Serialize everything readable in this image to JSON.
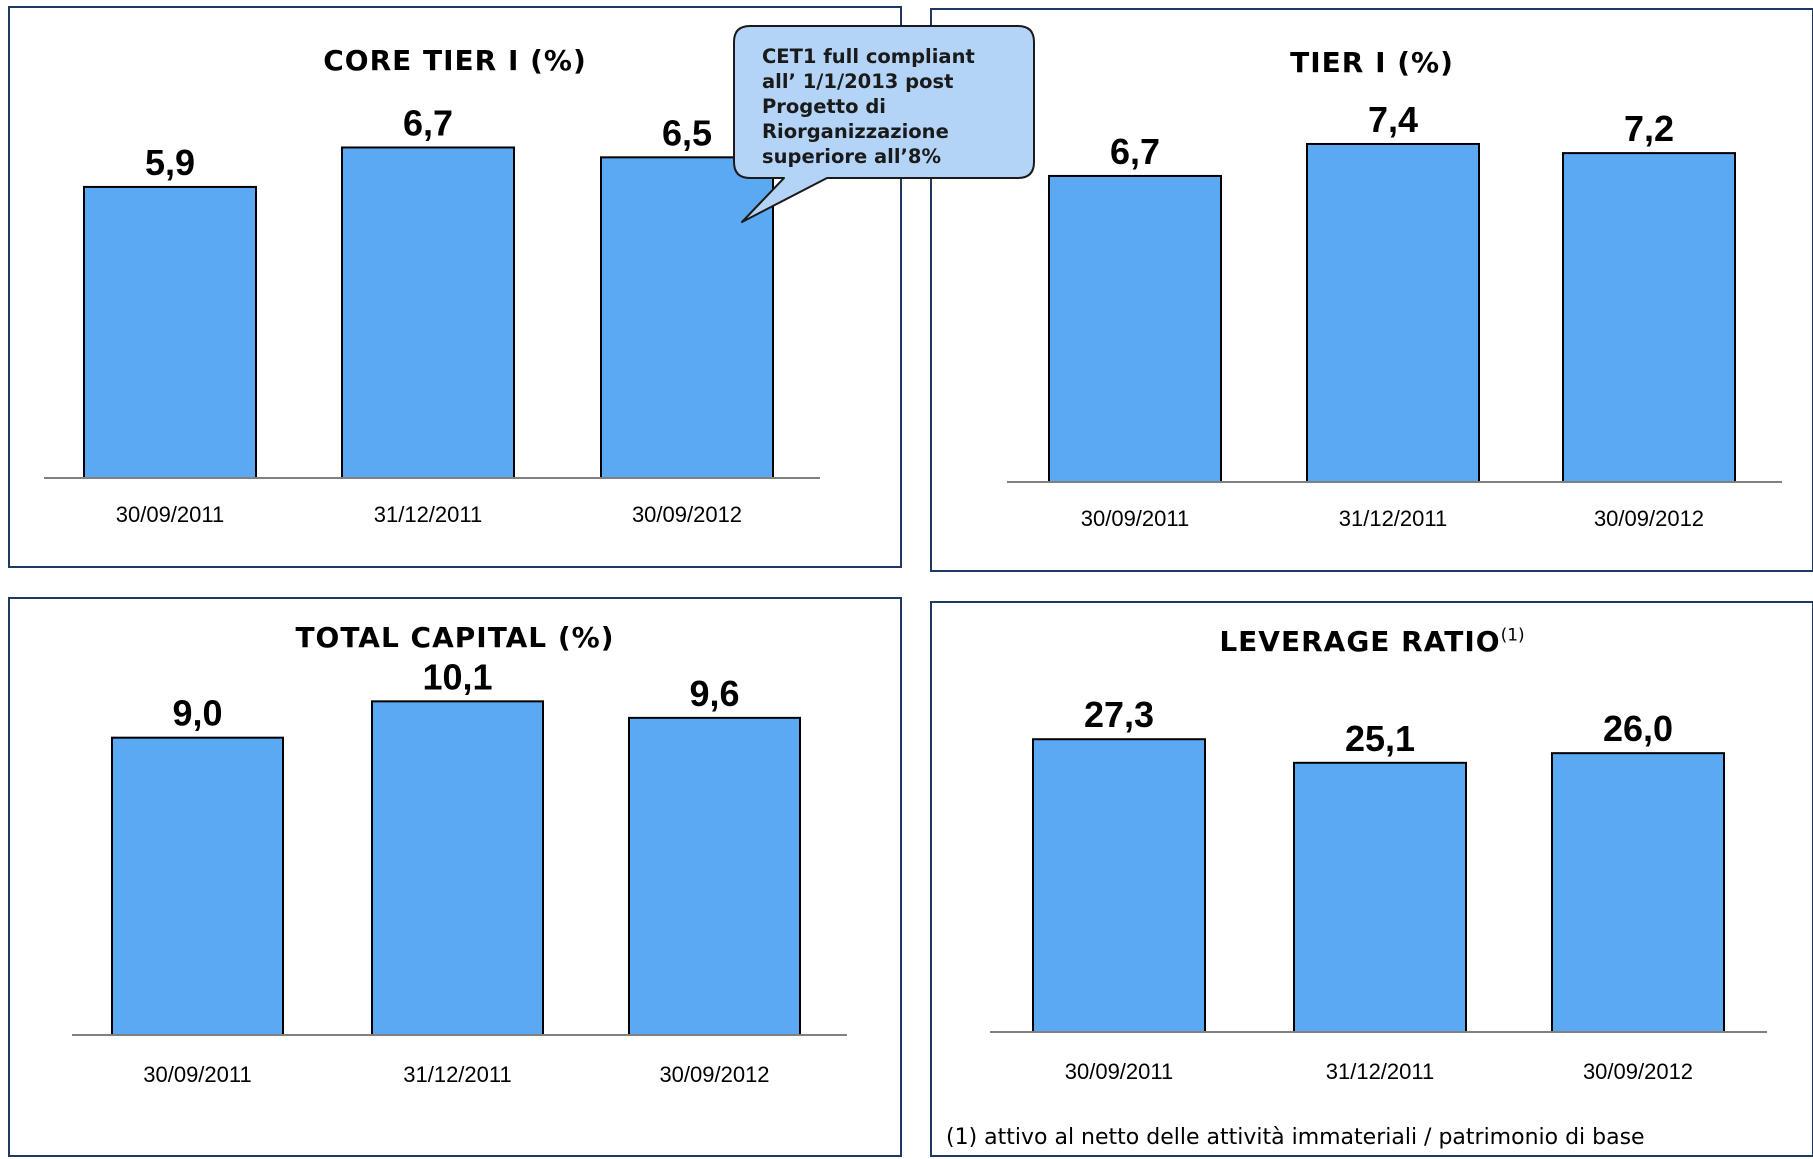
{
  "colors": {
    "bar": "#5aa9f2",
    "bar_border": "#000000",
    "panel_border": "#1f3864",
    "callout_fill": "#b3d4f7"
  },
  "chart_data": [
    {
      "type": "bar",
      "title": "CORE TIER I (%)",
      "categories": [
        "30/09/2011",
        "31/12/2011",
        "30/09/2012"
      ],
      "values": [
        5.9,
        6.7,
        6.5
      ],
      "value_labels": [
        "5,9",
        "6,7",
        "6,5"
      ],
      "ylim": [
        0,
        7.5
      ]
    },
    {
      "type": "bar",
      "title": "TIER I (%)",
      "categories": [
        "30/09/2011",
        "31/12/2011",
        "30/09/2012"
      ],
      "values": [
        6.7,
        7.4,
        7.2
      ],
      "value_labels": [
        "6,7",
        "7,4",
        "7,2"
      ],
      "ylim": [
        0,
        8.1
      ]
    },
    {
      "type": "bar",
      "title": "TOTAL CAPITAL (%)",
      "categories": [
        "30/09/2011",
        "31/12/2011",
        "30/09/2012"
      ],
      "values": [
        9.0,
        10.1,
        9.6
      ],
      "value_labels": [
        "9,0",
        "10,1",
        "9,6"
      ],
      "ylim": [
        0,
        11.2
      ]
    },
    {
      "type": "bar",
      "title": "LEVERAGE RATIO",
      "title_sup": "(1)",
      "categories": [
        "30/09/2011",
        "31/12/2011",
        "30/09/2012"
      ],
      "values": [
        27.3,
        25.1,
        26.0
      ],
      "value_labels": [
        "27,3",
        "25,1",
        "26,0"
      ],
      "ylim": [
        0,
        34.5
      ]
    }
  ],
  "callout": {
    "lines": [
      "CET1 full  compliant",
      "all’ 1/1/2013 post",
      "Progetto di",
      "Riorganizzazione",
      "superiore all’8%"
    ]
  },
  "footnote": "(1) attivo al netto delle attività immateriali / patrimonio di base"
}
